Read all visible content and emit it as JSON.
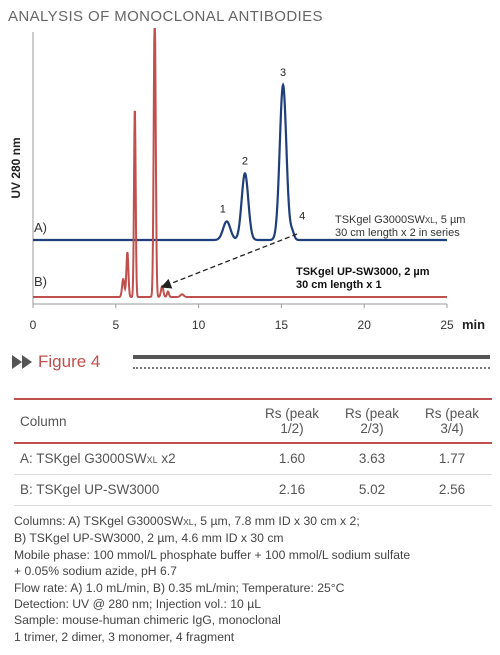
{
  "heading": "ANALYSIS OF MONOCLONAL ANTIBODIES",
  "chart_data": {
    "type": "line",
    "ylabel": "UV 280 nm",
    "xlabel": "min",
    "xlim": [
      0,
      25
    ],
    "xticks": [
      0,
      5,
      10,
      15,
      20,
      25
    ],
    "grid": false,
    "series": [
      {
        "name": "A)",
        "color": "#1f3f7a",
        "baseline": 0,
        "peaks": [
          {
            "label": "1",
            "x": 11.7,
            "height": 0.12,
            "width": 0.22
          },
          {
            "label": "2",
            "x": 12.8,
            "height": 0.43,
            "width": 0.2
          },
          {
            "label": "3",
            "x": 15.1,
            "height": 1.0,
            "width": 0.2
          },
          {
            "label": "4",
            "x": 15.65,
            "height": 0.05,
            "width": 0.12
          }
        ]
      },
      {
        "name": "B)",
        "color": "#c0504d",
        "baseline": 0,
        "peaks": [
          {
            "label": "",
            "x": 5.45,
            "height": 0.1,
            "width": 0.07
          },
          {
            "label": "",
            "x": 5.7,
            "height": 0.25,
            "width": 0.06
          },
          {
            "label": "",
            "x": 6.15,
            "height": 1.05,
            "width": 0.05
          },
          {
            "label": "",
            "x": 7.35,
            "height": 1.6,
            "width": 0.06
          },
          {
            "label": "",
            "x": 7.8,
            "height": 0.06,
            "width": 0.07
          },
          {
            "label": "",
            "x": 8.15,
            "height": 0.03,
            "width": 0.06
          },
          {
            "label": "",
            "x": 9.0,
            "height": 0.015,
            "width": 0.1
          }
        ]
      }
    ],
    "annotations": [
      {
        "text": "TSKgel G3000SW",
        "sub": "XL",
        "tail": ", 5 µm",
        "line2": "30 cm length x 2 in series"
      },
      {
        "text": "TSKgel UP-SW3000, 2 µm",
        "line2": "30 cm length x 1",
        "bold": true
      }
    ]
  },
  "figure": {
    "label": "Figure 4"
  },
  "table": {
    "header": {
      "column": "Column",
      "rs12": "Rs (peak 1/2)",
      "rs23": "Rs (peak 2/3)",
      "rs34": "Rs (peak 3/4)"
    },
    "rows": [
      {
        "name_a": "A: TSKgel G3000SW",
        "name_sub": "XL",
        "name_b": " x2",
        "rs12": "1.60",
        "rs23": "3.63",
        "rs34": "1.77"
      },
      {
        "name_a": "B: TSKgel UP-SW3000",
        "name_sub": "",
        "name_b": "",
        "rs12": "2.16",
        "rs23": "5.02",
        "rs34": "2.56"
      }
    ]
  },
  "notes": {
    "columns_a1": "Columns: A) TSKgel G3000SW",
    "columns_sub": "XL",
    "columns_a2": ", 5 µm, 7.8 mm ID x 30 cm x 2;",
    "columns_b": "B) TSKgel UP-SW3000, 2 µm, 4.6 mm ID x 30 cm",
    "mobile1": "Mobile phase: 100 mmol/L phosphate buffer + 100 mmol/L sodium sulfate",
    "mobile2": "+ 0.05% sodium azide, pH 6.7",
    "flow": "Flow rate: A) 1.0 mL/min, B) 0.35 mL/min; Temperature: 25°C",
    "detection": "Detection: UV @ 280 nm; Injection vol.: 10 µL",
    "sample": "Sample: mouse-human chimeric IgG, monoclonal",
    "legend": "1 trimer, 2 dimer, 3 monomer, 4 fragment"
  }
}
